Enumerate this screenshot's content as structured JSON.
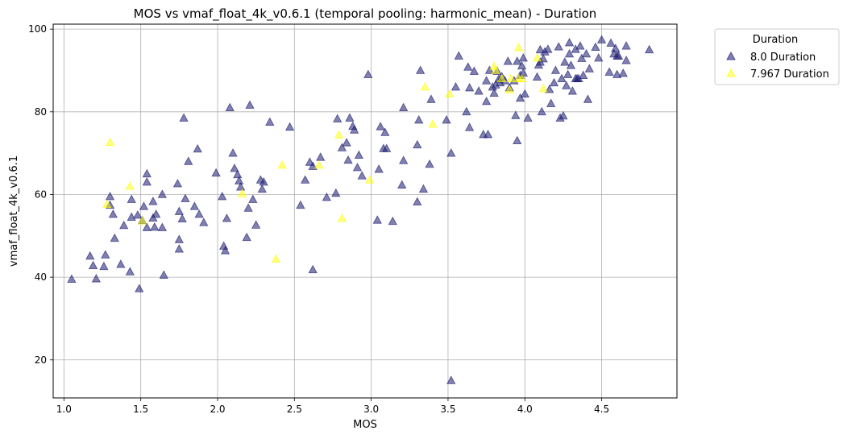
{
  "chart_data": {
    "type": "scatter",
    "title": "MOS vs vmaf_float_4k_v0.6.1 (temporal pooling: harmonic_mean) - Duration",
    "xlabel": "MOS",
    "ylabel": "vmaf_float_4k_v0.6.1",
    "xlim": [
      0.93,
      4.99
    ],
    "ylim": [
      10.8,
      101.2
    ],
    "xticks": [
      1.0,
      1.5,
      2.0,
      2.5,
      3.0,
      3.5,
      4.0,
      4.5
    ],
    "xtick_labels": [
      "1.0",
      "1.5",
      "2.0",
      "2.5",
      "3.0",
      "3.5",
      "4.0",
      "4.5"
    ],
    "yticks": [
      20,
      40,
      60,
      80,
      100
    ],
    "ytick_labels": [
      "20",
      "40",
      "60",
      "80",
      "100"
    ],
    "grid": true,
    "legend": {
      "title": "Duration",
      "placement": "outside-upper-right"
    },
    "series": [
      {
        "name": "8.0 Duration",
        "color": "#191970",
        "marker": "triangle",
        "points": [
          [
            1.05,
            39.5
          ],
          [
            1.17,
            45.1
          ],
          [
            1.19,
            42.8
          ],
          [
            1.21,
            39.6
          ],
          [
            1.26,
            42.6
          ],
          [
            1.27,
            45.4
          ],
          [
            1.3,
            59.5
          ],
          [
            1.3,
            57.4
          ],
          [
            1.32,
            55.2
          ],
          [
            1.33,
            49.4
          ],
          [
            1.37,
            43.1
          ],
          [
            1.39,
            52.5
          ],
          [
            1.43,
            41.3
          ],
          [
            1.44,
            54.5
          ],
          [
            1.44,
            58.8
          ],
          [
            1.48,
            55
          ],
          [
            1.49,
            37.2
          ],
          [
            1.51,
            53.7
          ],
          [
            1.52,
            57.1
          ],
          [
            1.54,
            65
          ],
          [
            1.54,
            63
          ],
          [
            1.54,
            52
          ],
          [
            1.58,
            54.3
          ],
          [
            1.58,
            58.3
          ],
          [
            1.59,
            52.1
          ],
          [
            1.6,
            55.2
          ],
          [
            1.64,
            60
          ],
          [
            1.64,
            52
          ],
          [
            1.65,
            40.5
          ],
          [
            1.74,
            62.6
          ],
          [
            1.75,
            49.1
          ],
          [
            1.75,
            46.8
          ],
          [
            1.75,
            55.9
          ],
          [
            1.77,
            54.1
          ],
          [
            1.78,
            78.5
          ],
          [
            1.79,
            59
          ],
          [
            1.81,
            68
          ],
          [
            1.85,
            57.1
          ],
          [
            1.87,
            71
          ],
          [
            1.88,
            55.2
          ],
          [
            1.91,
            53.2
          ],
          [
            1.99,
            65.2
          ],
          [
            2.03,
            59.5
          ],
          [
            2.04,
            47.5
          ],
          [
            2.05,
            46.4
          ],
          [
            2.06,
            54.2
          ],
          [
            2.08,
            81
          ],
          [
            2.1,
            70
          ],
          [
            2.11,
            66.3
          ],
          [
            2.13,
            64.8
          ],
          [
            2.14,
            63.3
          ],
          [
            2.15,
            61.8
          ],
          [
            2.19,
            49.6
          ],
          [
            2.2,
            56.7
          ],
          [
            2.21,
            81.6
          ],
          [
            2.23,
            58.8
          ],
          [
            2.25,
            52.6
          ],
          [
            2.28,
            63.5
          ],
          [
            2.29,
            61.3
          ],
          [
            2.3,
            63
          ],
          [
            2.34,
            77.5
          ],
          [
            2.47,
            76.3
          ],
          [
            2.54,
            57.4
          ],
          [
            2.57,
            63.5
          ],
          [
            2.6,
            67.8
          ],
          [
            2.62,
            41.8
          ],
          [
            2.62,
            66.8
          ],
          [
            2.67,
            69
          ],
          [
            2.71,
            59.3
          ],
          [
            2.77,
            60.3
          ],
          [
            2.78,
            78.3
          ],
          [
            2.81,
            71.3
          ],
          [
            2.84,
            72.5
          ],
          [
            2.85,
            68.3
          ],
          [
            2.86,
            78.5
          ],
          [
            2.88,
            76.5
          ],
          [
            2.89,
            75.6
          ],
          [
            2.91,
            66.5
          ],
          [
            2.92,
            69.5
          ],
          [
            2.94,
            64.5
          ],
          [
            2.98,
            89
          ],
          [
            3.04,
            53.8
          ],
          [
            3.05,
            66.1
          ],
          [
            3.06,
            76.4
          ],
          [
            3.08,
            71.1
          ],
          [
            3.09,
            75
          ],
          [
            3.1,
            71.1
          ],
          [
            3.14,
            53.5
          ],
          [
            3.2,
            62.3
          ],
          [
            3.21,
            81
          ],
          [
            3.21,
            68.2
          ],
          [
            3.3,
            58.2
          ],
          [
            3.3,
            72
          ],
          [
            3.31,
            78
          ],
          [
            3.32,
            90
          ],
          [
            3.34,
            61.3
          ],
          [
            3.38,
            67.3
          ],
          [
            3.39,
            83
          ],
          [
            3.49,
            78
          ],
          [
            3.52,
            70
          ],
          [
            3.52,
            15
          ],
          [
            3.55,
            86
          ],
          [
            3.57,
            93.5
          ],
          [
            3.62,
            80
          ],
          [
            3.63,
            90.8
          ],
          [
            3.64,
            76.2
          ],
          [
            3.64,
            85.8
          ],
          [
            3.67,
            89.8
          ],
          [
            3.7,
            85
          ],
          [
            3.73,
            74.5
          ],
          [
            3.75,
            87.5
          ],
          [
            3.75,
            82.5
          ],
          [
            3.76,
            74.5
          ],
          [
            3.77,
            90
          ],
          [
            3.79,
            86
          ],
          [
            3.8,
            84.5
          ],
          [
            3.81,
            86.5
          ],
          [
            3.82,
            89.8
          ],
          [
            3.83,
            87.9
          ],
          [
            3.84,
            87
          ],
          [
            3.85,
            88.5
          ],
          [
            3.87,
            87.5
          ],
          [
            3.89,
            92.2
          ],
          [
            3.9,
            85.8
          ],
          [
            3.93,
            87.5
          ],
          [
            3.94,
            79.1
          ],
          [
            3.95,
            73
          ],
          [
            3.95,
            92.2
          ],
          [
            3.97,
            83.3
          ],
          [
            3.97,
            88.8
          ],
          [
            3.98,
            91.1
          ],
          [
            3.99,
            89.4
          ],
          [
            3.99,
            93
          ],
          [
            4,
            84.3
          ],
          [
            4.02,
            78.5
          ],
          [
            4.08,
            88.4
          ],
          [
            4.09,
            91.3
          ],
          [
            4.1,
            95
          ],
          [
            4.1,
            92
          ],
          [
            4.11,
            80
          ],
          [
            4.12,
            92.8
          ],
          [
            4.13,
            94.5
          ],
          [
            4.15,
            95.1
          ],
          [
            4.16,
            85.4
          ],
          [
            4.17,
            82
          ],
          [
            4.19,
            87
          ],
          [
            4.2,
            90
          ],
          [
            4.22,
            95.7
          ],
          [
            4.23,
            78.5
          ],
          [
            4.24,
            88
          ],
          [
            4.25,
            79
          ],
          [
            4.26,
            92
          ],
          [
            4.27,
            86.3
          ],
          [
            4.28,
            89
          ],
          [
            4.29,
            96.7
          ],
          [
            4.29,
            94
          ],
          [
            4.3,
            91.2
          ],
          [
            4.31,
            85
          ],
          [
            4.33,
            95.1
          ],
          [
            4.33,
            88
          ],
          [
            4.34,
            88
          ],
          [
            4.35,
            88
          ],
          [
            4.36,
            95.9
          ],
          [
            4.37,
            92.9
          ],
          [
            4.38,
            88.8
          ],
          [
            4.4,
            94
          ],
          [
            4.41,
            83
          ],
          [
            4.42,
            90.4
          ],
          [
            4.46,
            95.6
          ],
          [
            4.48,
            93
          ],
          [
            4.5,
            97.4
          ],
          [
            4.55,
            89.6
          ],
          [
            4.56,
            96.6
          ],
          [
            4.58,
            94
          ],
          [
            4.59,
            95.3
          ],
          [
            4.6,
            93.5
          ],
          [
            4.6,
            89
          ],
          [
            4.61,
            93.5
          ],
          [
            4.64,
            89.3
          ],
          [
            4.66,
            95.9
          ],
          [
            4.66,
            92.4
          ],
          [
            4.81,
            95
          ]
        ]
      },
      {
        "name": "7.967 Duration",
        "color": "#ffff00",
        "marker": "triangle",
        "points": [
          [
            1.28,
            57.6
          ],
          [
            1.3,
            72.6
          ],
          [
            1.43,
            62
          ],
          [
            1.51,
            53.6
          ],
          [
            2.16,
            60.2
          ],
          [
            2.38,
            44.4
          ],
          [
            2.42,
            67.1
          ],
          [
            2.66,
            67.1
          ],
          [
            2.79,
            74.4
          ],
          [
            2.81,
            54.2
          ],
          [
            2.99,
            63.5
          ],
          [
            3.35,
            86
          ],
          [
            3.4,
            77
          ],
          [
            3.51,
            84.3
          ],
          [
            3.8,
            91
          ],
          [
            3.81,
            90
          ],
          [
            3.85,
            88
          ],
          [
            3.9,
            85.3
          ],
          [
            3.91,
            88
          ],
          [
            3.96,
            88
          ],
          [
            3.98,
            88
          ],
          [
            3.96,
            95.5
          ],
          [
            4.08,
            93
          ],
          [
            4.12,
            85.6
          ]
        ]
      }
    ]
  }
}
